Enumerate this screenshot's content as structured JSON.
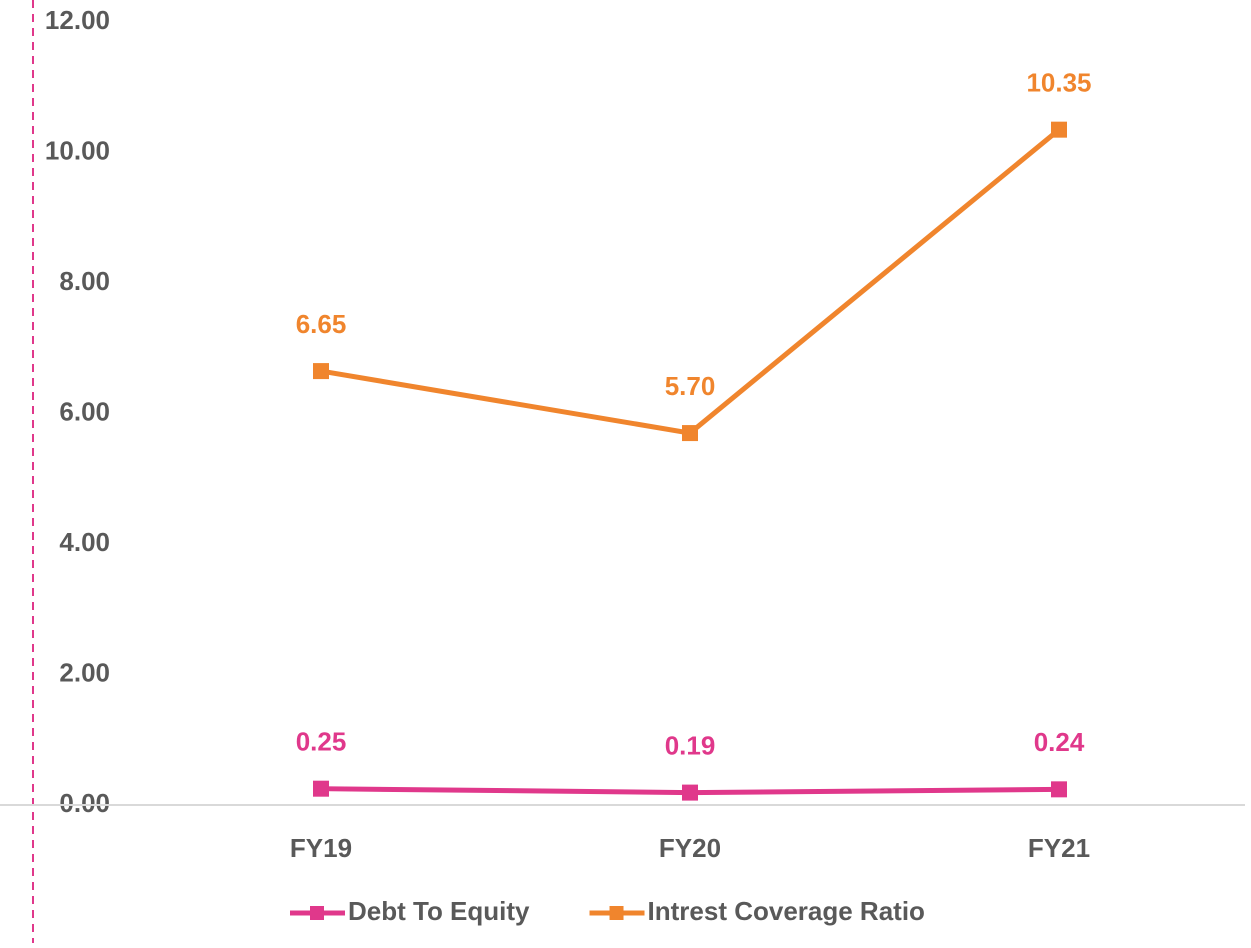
{
  "chart_data": {
    "type": "line",
    "categories": [
      "FY19",
      "FY20",
      "FY21"
    ],
    "series": [
      {
        "name": "Debt To Equity",
        "color": "#e0388b",
        "values": [
          0.25,
          0.19,
          0.24
        ],
        "value_labels": [
          "0.25",
          "0.19",
          "0.24"
        ]
      },
      {
        "name": "Intrest Coverage Ratio",
        "color": "#f0852d",
        "values": [
          6.65,
          5.7,
          10.35
        ],
        "value_labels": [
          "6.65",
          "5.70",
          "10.35"
        ]
      }
    ],
    "ylim": [
      0,
      12
    ],
    "yticks": [
      {
        "value": 0,
        "label": "0.00"
      },
      {
        "value": 2,
        "label": "2.00"
      },
      {
        "value": 4,
        "label": "4.00"
      },
      {
        "value": 6,
        "label": "6.00"
      },
      {
        "value": 8,
        "label": "8.00"
      },
      {
        "value": 10,
        "label": "10.00"
      },
      {
        "value": 12,
        "label": "12.00"
      }
    ],
    "legend": "bottom"
  }
}
